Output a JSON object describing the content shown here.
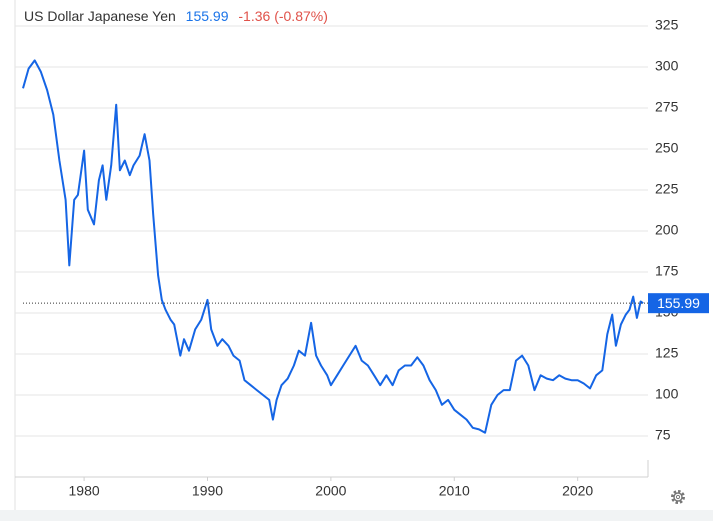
{
  "chart_data": {
    "type": "line",
    "title": "US Dollar Japanese Yen",
    "last_price": 155.99,
    "change": "-1.36 (-0.87%)",
    "color": "#1565e5",
    "x": [
      1975.05,
      1975.5,
      1976.0,
      1976.5,
      1977.0,
      1977.5,
      1978.0,
      1978.5,
      1978.8,
      1979.2,
      1979.5,
      1980.0,
      1980.3,
      1980.8,
      1981.2,
      1981.5,
      1981.8,
      1982.2,
      1982.6,
      1982.9,
      1983.3,
      1983.7,
      1984.0,
      1984.5,
      1984.9,
      1985.3,
      1985.6,
      1986.0,
      1986.3,
      1986.6,
      1987.0,
      1987.3,
      1987.8,
      1988.1,
      1988.5,
      1989.0,
      1989.5,
      1990.0,
      1990.3,
      1990.8,
      1991.2,
      1991.7,
      1992.1,
      1992.6,
      1993.0,
      1993.5,
      1994.0,
      1994.5,
      1995.0,
      1995.3,
      1995.6,
      1996.0,
      1996.5,
      1997.0,
      1997.4,
      1997.9,
      1998.4,
      1998.8,
      1999.2,
      1999.7,
      2000.0,
      2000.5,
      2001.0,
      2001.5,
      2002.0,
      2002.5,
      2003.0,
      2003.5,
      2004.0,
      2004.5,
      2005.0,
      2005.5,
      2006.0,
      2006.5,
      2007.0,
      2007.5,
      2008.0,
      2008.5,
      2009.0,
      2009.5,
      2010.0,
      2010.5,
      2011.0,
      2011.5,
      2012.0,
      2012.5,
      2013.0,
      2013.5,
      2014.0,
      2014.5,
      2015.0,
      2015.5,
      2016.0,
      2016.5,
      2017.0,
      2017.5,
      2018.0,
      2018.5,
      2019.0,
      2019.5,
      2020.0,
      2020.5,
      2021.0,
      2021.5,
      2022.0,
      2022.4,
      2022.8,
      2023.1,
      2023.5,
      2023.9,
      2024.2,
      2024.5,
      2024.8,
      2025.1,
      2025.3
    ],
    "values": [
      287,
      299,
      304,
      297,
      286,
      271,
      243,
      219,
      179,
      219,
      222,
      249,
      213,
      204,
      231,
      240,
      219,
      240,
      277,
      237,
      243,
      234,
      240,
      246,
      259,
      243,
      210,
      173,
      158,
      152,
      146,
      143,
      124,
      134,
      127,
      140,
      146,
      158,
      140,
      130,
      134,
      130,
      124,
      121,
      109,
      106,
      103,
      100,
      97,
      85,
      97,
      106,
      110,
      118,
      127,
      124,
      144,
      124,
      118,
      112,
      106,
      112,
      118,
      124,
      130,
      121,
      118,
      112,
      106,
      112,
      106,
      115,
      118,
      118,
      123,
      118,
      109,
      103,
      94,
      97,
      91,
      88,
      85,
      80,
      79,
      77,
      94,
      100,
      103,
      103,
      121,
      124,
      118,
      103,
      112,
      110,
      109,
      112,
      110,
      109,
      109,
      107,
      104,
      112,
      115,
      137,
      149,
      130,
      143,
      149,
      152,
      160,
      147,
      157,
      156
    ],
    "xlim": [
      1974.4,
      2025.7
    ],
    "ylim": [
      50,
      340
    ],
    "xticks": [
      1980,
      1990,
      2000,
      2010,
      2020
    ],
    "yticks": [
      75,
      100,
      125,
      150,
      175,
      200,
      225,
      250,
      275,
      300,
      325
    ],
    "grid": true
  }
}
